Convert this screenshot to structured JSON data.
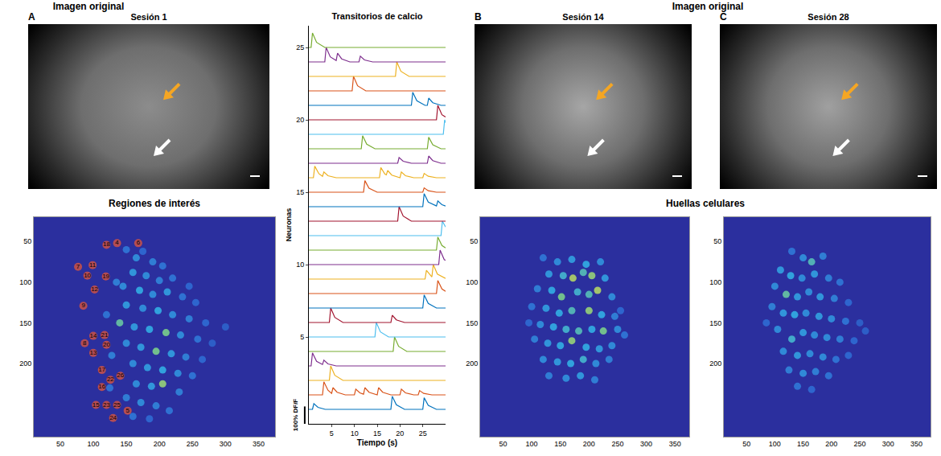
{
  "image_headings": [
    "Imagen original",
    "Imagen original"
  ],
  "images": [
    {
      "panel": "A",
      "title": "Sesión 1"
    },
    {
      "panel": "B",
      "title": "Sesión 14"
    },
    {
      "panel": "C",
      "title": "Sesión 28"
    }
  ],
  "footprints_heading": "Huellas celulares",
  "chart_data": [
    {
      "type": "line",
      "title": "Transitorios de calcio",
      "x_label": "Tiempo (s)",
      "y_label": "Neuronas",
      "xlim": [
        0,
        30
      ],
      "xticks": [
        5,
        10,
        15,
        20,
        25
      ],
      "ylim": [
        -1,
        26.5
      ],
      "yticks": [
        5,
        10,
        15,
        20,
        25
      ],
      "scale_bar": {
        "label": "100% DF/F",
        "length": 1.2
      },
      "series": [
        {
          "color": "#0072BD",
          "x": [
            0,
            0.8,
            1.1,
            2.0,
            3.6,
            18,
            18.3,
            19.2,
            21,
            25,
            25.3,
            26.2,
            28,
            30
          ],
          "values": [
            0,
            0,
            0.4,
            0.14,
            0,
            0,
            0.9,
            0.32,
            0,
            0,
            0.8,
            0.28,
            0,
            0
          ]
        },
        {
          "color": "#D95319",
          "x": [
            0,
            3,
            3.3,
            4.2,
            5,
            5.3,
            6.2,
            8,
            10,
            10.3,
            11.2,
            12,
            12.3,
            13.2,
            15,
            15.3,
            16.2,
            18,
            20,
            20.3,
            21.2,
            23,
            24,
            24.3,
            25.2,
            27,
            30
          ],
          "values": [
            1,
            1,
            1.9,
            1.32,
            1.1,
            1.5,
            1.18,
            1,
            1,
            1.4,
            1.14,
            1.05,
            1.5,
            1.18,
            1,
            1.5,
            1.18,
            1,
            1,
            1.4,
            1.14,
            1,
            1,
            1.3,
            1.1,
            1,
            1
          ]
        },
        {
          "color": "#EDB120",
          "x": [
            0,
            4.5,
            4.8,
            5.7,
            7.5,
            30
          ],
          "values": [
            2,
            2,
            3,
            2.35,
            2,
            2
          ]
        },
        {
          "color": "#7E2F8E",
          "x": [
            0,
            0.5,
            0.8,
            1.7,
            3,
            3.3,
            4.2,
            6,
            30
          ],
          "values": [
            3,
            3,
            3.9,
            3.32,
            3.1,
            3.4,
            3.14,
            3,
            3
          ]
        },
        {
          "color": "#77AC30",
          "x": [
            0,
            18.5,
            18.8,
            19.7,
            21.5,
            30
          ],
          "values": [
            4,
            4,
            5,
            4.35,
            4,
            4
          ]
        },
        {
          "color": "#4DBEEE",
          "x": [
            0,
            14.5,
            14.8,
            15.7,
            17.5,
            30
          ],
          "values": [
            5,
            5,
            6,
            5.35,
            5,
            5
          ]
        },
        {
          "color": "#A2142F",
          "x": [
            0,
            4.5,
            4.8,
            5.7,
            7.5,
            18,
            18.3,
            19.2,
            21,
            30
          ],
          "values": [
            6,
            6,
            7,
            6.35,
            6,
            6,
            6.5,
            6.18,
            6,
            6
          ]
        },
        {
          "color": "#0072BD",
          "x": [
            0,
            25,
            25.3,
            26.2,
            28,
            30
          ],
          "values": [
            7,
            7,
            7.9,
            7.32,
            7,
            7
          ]
        },
        {
          "color": "#D95319",
          "x": [
            0,
            28,
            28.3,
            29.2,
            30
          ],
          "values": [
            8,
            8,
            8.9,
            8.32,
            8.15
          ]
        },
        {
          "color": "#EDB120",
          "x": [
            0,
            25.5,
            25.8,
            26.7,
            27,
            27.3,
            28.2,
            30
          ],
          "values": [
            9,
            9,
            9.6,
            9.21,
            9.15,
            10,
            9.35,
            9.05
          ]
        },
        {
          "color": "#7E2F8E",
          "x": [
            0,
            28.5,
            28.8,
            29.7,
            30
          ],
          "values": [
            10,
            10,
            11,
            10.35,
            10.3
          ]
        },
        {
          "color": "#77AC30",
          "x": [
            0,
            28,
            28.3,
            29.2,
            30
          ],
          "values": [
            11,
            11,
            11.9,
            11.32,
            11.15
          ]
        },
        {
          "color": "#4DBEEE",
          "x": [
            0,
            29,
            29.3,
            30
          ],
          "values": [
            12,
            12,
            13,
            12.6
          ]
        },
        {
          "color": "#A2142F",
          "x": [
            0,
            19.5,
            19.8,
            20.7,
            22.5,
            30
          ],
          "values": [
            13,
            13,
            14,
            13.35,
            13,
            13
          ]
        },
        {
          "color": "#0072BD",
          "x": [
            0,
            25,
            25.3,
            26.2,
            28,
            28.3,
            29.2,
            30
          ],
          "values": [
            14,
            14,
            14.9,
            14.32,
            14.05,
            14.4,
            14.14,
            14.05
          ]
        },
        {
          "color": "#D95319",
          "x": [
            0,
            12,
            12.3,
            13.2,
            15,
            25,
            25.3,
            26.2,
            28,
            30
          ],
          "values": [
            15,
            15,
            15.8,
            15.28,
            15,
            15,
            15.3,
            15.1,
            15,
            15
          ]
        },
        {
          "color": "#EDB120",
          "x": [
            0,
            1,
            1.3,
            2.2,
            3,
            3.3,
            4.2,
            6,
            15.5,
            15.8,
            16.7,
            17,
            17.3,
            18.2,
            20,
            20.3,
            21.2,
            23,
            25,
            25.3,
            26.2,
            28,
            30
          ],
          "values": [
            16,
            16,
            16.8,
            16.28,
            16.1,
            16.4,
            16.14,
            16,
            16,
            16.7,
            16.25,
            16.2,
            16.5,
            16.18,
            16,
            16.4,
            16.14,
            16,
            16,
            16.3,
            16.1,
            16,
            16
          ]
        },
        {
          "color": "#7E2F8E",
          "x": [
            0,
            19.5,
            19.8,
            20.7,
            22.5,
            26,
            26.3,
            27.2,
            29,
            30
          ],
          "values": [
            17,
            17,
            17.4,
            17.14,
            17,
            17,
            17.5,
            17.18,
            17,
            17
          ]
        },
        {
          "color": "#77AC30",
          "x": [
            0,
            11.5,
            11.8,
            12.7,
            14.5,
            26,
            26.3,
            27.2,
            29,
            30
          ],
          "values": [
            18,
            18,
            18.9,
            18.32,
            18,
            18,
            18.8,
            18.28,
            18,
            18
          ]
        },
        {
          "color": "#4DBEEE",
          "x": [
            0,
            29.5,
            29.8,
            30
          ],
          "values": [
            19,
            19,
            20,
            19.8
          ]
        },
        {
          "color": "#A2142F",
          "x": [
            0,
            28,
            28.3,
            29.2,
            30
          ],
          "values": [
            20,
            20,
            21,
            20.35,
            20.2
          ]
        },
        {
          "color": "#0072BD",
          "x": [
            0,
            22.5,
            22.8,
            23.7,
            25.5,
            26,
            26.3,
            27.2,
            29,
            30
          ],
          "values": [
            21,
            21,
            21.9,
            21.32,
            21,
            21,
            21.5,
            21.18,
            21,
            21
          ]
        },
        {
          "color": "#D95319",
          "x": [
            0,
            9.5,
            9.8,
            10.7,
            12.5,
            30
          ],
          "values": [
            22,
            22,
            23,
            22.35,
            22,
            22
          ]
        },
        {
          "color": "#EDB120",
          "x": [
            0,
            19,
            19.3,
            20.2,
            22,
            30
          ],
          "values": [
            23,
            23,
            24,
            23.35,
            23,
            23
          ]
        },
        {
          "color": "#7E2F8E",
          "x": [
            0,
            3.5,
            3.8,
            4.7,
            6,
            6.3,
            7.2,
            9,
            11,
            11.3,
            12.2,
            14,
            30
          ],
          "values": [
            24,
            24,
            25,
            24.35,
            24.1,
            24.6,
            24.21,
            24,
            24,
            24.4,
            24.14,
            24,
            24
          ]
        },
        {
          "color": "#77AC30",
          "x": [
            0,
            0.5,
            0.8,
            1.7,
            3.5,
            30
          ],
          "values": [
            25,
            25,
            26,
            25.35,
            25,
            25
          ]
        }
      ]
    },
    {
      "type": "scatter",
      "title": "Regiones de interés",
      "xlim": [
        10,
        375
      ],
      "ylim": [
        290,
        20
      ],
      "xticks": [
        50,
        100,
        150,
        200,
        250,
        300,
        350
      ],
      "yticks": [
        50,
        100,
        150,
        200
      ],
      "clim": [
        0,
        1
      ],
      "x": [
        150,
        165,
        175,
        190,
        205,
        160,
        180,
        200,
        220,
        145,
        170,
        190,
        212,
        235,
        255,
        150,
        175,
        198,
        220,
        245,
        270,
        300,
        140,
        162,
        185,
        210,
        232,
        258,
        150,
        172,
        195,
        218,
        240,
        160,
        182,
        205,
        228,
        250,
        165,
        188,
        205,
        230,
        150,
        172,
        195,
        215,
        160,
        185,
        265,
        280,
        120,
        128,
        125,
        135,
        245
      ],
      "y": [
        60,
        70,
        62,
        75,
        80,
        88,
        92,
        98,
        95,
        105,
        110,
        115,
        112,
        118,
        125,
        128,
        132,
        135,
        140,
        145,
        150,
        155,
        150,
        155,
        158,
        162,
        165,
        170,
        175,
        180,
        185,
        188,
        192,
        200,
        205,
        208,
        212,
        215,
        225,
        228,
        225,
        235,
        242,
        248,
        252,
        258,
        265,
        268,
        195,
        175,
        140,
        190,
        230,
        100,
        105
      ],
      "intensity": [
        0.4,
        0.5,
        0.35,
        0.45,
        0.4,
        0.55,
        0.5,
        0.45,
        0.4,
        0.5,
        0.6,
        0.5,
        0.55,
        0.4,
        0.35,
        0.55,
        0.5,
        0.6,
        0.5,
        0.45,
        0.35,
        0.3,
        0.75,
        0.55,
        0.6,
        0.8,
        0.5,
        0.4,
        0.5,
        0.55,
        0.8,
        0.55,
        0.45,
        0.5,
        0.55,
        0.6,
        0.5,
        0.4,
        0.5,
        0.55,
        0.85,
        0.45,
        0.45,
        0.5,
        0.45,
        0.4,
        0.4,
        0.35,
        0.35,
        0.3,
        0.4,
        0.45,
        0.4,
        0.45,
        0.35
      ],
      "rois": {
        "labels": [
          18,
          4,
          6,
          7,
          11,
          10,
          19,
          12,
          9,
          14,
          21,
          20,
          8,
          13,
          17,
          22,
          26,
          16,
          15,
          23,
          25,
          5,
          24
        ],
        "x": [
          120,
          136,
          168,
          77,
          99,
          91,
          119,
          102,
          85,
          100,
          117,
          120,
          87,
          100,
          113,
          126,
          141,
          113,
          104,
          120,
          136,
          152,
          130
        ],
        "y": [
          54,
          52,
          52,
          81,
          79,
          92,
          93,
          109,
          129,
          166,
          165,
          177,
          175,
          187,
          208,
          220,
          215,
          229,
          251,
          251,
          251,
          258,
          267
        ]
      }
    },
    {
      "type": "scatter",
      "xlim": [
        10,
        375
      ],
      "ylim": [
        290,
        20
      ],
      "xticks": [
        50,
        100,
        150,
        200,
        250,
        300,
        350
      ],
      "yticks": [
        50,
        100,
        150,
        200
      ],
      "clim": [
        0,
        1
      ],
      "x": [
        120,
        145,
        170,
        195,
        220,
        130,
        155,
        172,
        190,
        205,
        228,
        110,
        135,
        152,
        180,
        200,
        215,
        240,
        100,
        125,
        148,
        170,
        200,
        222,
        245,
        115,
        138,
        160,
        182,
        205,
        225,
        250,
        262,
        105,
        128,
        150,
        170,
        195,
        218,
        240,
        120,
        145,
        168,
        190,
        212,
        235,
        130,
        160,
        185,
        210,
        95,
        255
      ],
      "y": [
        70,
        75,
        72,
        78,
        75,
        90,
        92,
        95,
        88,
        92,
        95,
        108,
        110,
        118,
        112,
        115,
        110,
        118,
        130,
        132,
        138,
        135,
        135,
        140,
        142,
        152,
        155,
        158,
        160,
        158,
        160,
        158,
        165,
        170,
        175,
        178,
        172,
        180,
        182,
        178,
        195,
        198,
        200,
        195,
        200,
        195,
        215,
        218,
        215,
        220,
        150,
        135
      ],
      "intensity": [
        0.4,
        0.5,
        0.55,
        0.6,
        0.5,
        0.55,
        0.65,
        0.9,
        0.7,
        0.85,
        0.55,
        0.45,
        0.6,
        0.8,
        0.65,
        0.7,
        0.9,
        0.5,
        0.4,
        0.55,
        0.6,
        0.7,
        0.85,
        0.6,
        0.45,
        0.5,
        0.6,
        0.65,
        0.7,
        0.6,
        0.8,
        0.5,
        0.4,
        0.45,
        0.55,
        0.6,
        0.85,
        0.6,
        0.55,
        0.5,
        0.5,
        0.55,
        0.6,
        0.65,
        0.5,
        0.45,
        0.45,
        0.5,
        0.55,
        0.45,
        0.35,
        0.35
      ]
    },
    {
      "type": "scatter",
      "xlim": [
        10,
        375
      ],
      "ylim": [
        290,
        20
      ],
      "xticks": [
        50,
        100,
        150,
        200,
        250,
        300,
        350
      ],
      "yticks": [
        50,
        100,
        150,
        200
      ],
      "clim": [
        0,
        1
      ],
      "x": [
        130,
        150,
        165,
        185,
        110,
        128,
        148,
        170,
        195,
        215,
        100,
        120,
        140,
        160,
        180,
        205,
        230,
        95,
        115,
        135,
        155,
        178,
        200,
        225,
        250,
        105,
        130,
        150,
        170,
        192,
        215,
        240,
        115,
        140,
        162,
        185,
        208,
        230,
        125,
        150,
        172,
        195,
        140,
        165,
        85,
        260
      ],
      "y": [
        62,
        70,
        75,
        68,
        85,
        92,
        95,
        90,
        95,
        100,
        105,
        115,
        118,
        112,
        118,
        120,
        125,
        130,
        138,
        140,
        138,
        142,
        145,
        148,
        150,
        158,
        170,
        162,
        165,
        168,
        170,
        172,
        185,
        190,
        188,
        192,
        195,
        190,
        208,
        212,
        210,
        215,
        228,
        232,
        150,
        160
      ],
      "intensity": [
        0.4,
        0.5,
        0.7,
        0.45,
        0.55,
        0.6,
        0.5,
        0.55,
        0.45,
        0.4,
        0.5,
        0.75,
        0.55,
        0.5,
        0.55,
        0.45,
        0.35,
        0.45,
        0.55,
        0.6,
        0.5,
        0.55,
        0.5,
        0.4,
        0.3,
        0.5,
        0.65,
        0.55,
        0.5,
        0.5,
        0.45,
        0.35,
        0.5,
        0.55,
        0.5,
        0.5,
        0.4,
        0.35,
        0.45,
        0.5,
        0.45,
        0.4,
        0.4,
        0.35,
        0.35,
        0.3
      ]
    }
  ]
}
